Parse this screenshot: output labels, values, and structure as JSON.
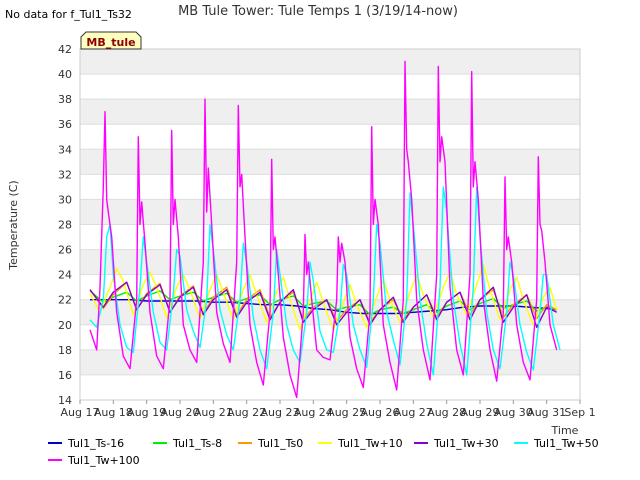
{
  "no_data_note": "No data for f_Tul1_Ts32",
  "badge": "MB_tule",
  "colors": {
    "band": "#efefef",
    "grid": "#dddddd",
    "axis": "#999999",
    "badge_fill": "#ffffc0",
    "badge_border": "#333333"
  },
  "chart_data": {
    "type": "line",
    "title": "MB Tule Tower: Tule Temps 1 (3/19/14-now)",
    "ylabel": "Temperature (C)",
    "xlabel": "Time",
    "ylim": [
      14,
      42
    ],
    "yticks": [
      14,
      16,
      18,
      20,
      22,
      24,
      26,
      28,
      30,
      32,
      34,
      36,
      38,
      40,
      42
    ],
    "xlim": [
      17,
      32
    ],
    "xticks": [
      {
        "value": 17,
        "label": "Aug 17"
      },
      {
        "value": 18,
        "label": "Aug 18"
      },
      {
        "value": 19,
        "label": "Aug 19"
      },
      {
        "value": 20,
        "label": "Aug 20"
      },
      {
        "value": 21,
        "label": "Aug 21"
      },
      {
        "value": 22,
        "label": "Aug 22"
      },
      {
        "value": 23,
        "label": "Aug 23"
      },
      {
        "value": 24,
        "label": "Aug 24"
      },
      {
        "value": 25,
        "label": "Aug 25"
      },
      {
        "value": 26,
        "label": "Aug 26"
      },
      {
        "value": 27,
        "label": "Aug 27"
      },
      {
        "value": 28,
        "label": "Aug 28"
      },
      {
        "value": 29,
        "label": "Aug 29"
      },
      {
        "value": 30,
        "label": "Aug 30"
      },
      {
        "value": 31,
        "label": "Aug 31"
      },
      {
        "value": 32,
        "label": "Sep 1"
      }
    ],
    "grid": true,
    "legend_position": "bottom",
    "series": [
      {
        "name": "Tul1_Ts-16",
        "color": "#0000cc",
        "x": [
          17.3,
          18,
          18.5,
          19,
          19.5,
          20,
          20.5,
          21,
          21.5,
          22,
          22.5,
          23,
          23.5,
          24,
          24.5,
          25,
          25.5,
          26,
          26.5,
          27,
          27.5,
          28,
          28.5,
          29,
          29.5,
          30,
          30.5,
          31,
          31.3
        ],
        "y": [
          22.0,
          22.0,
          22.0,
          21.9,
          21.9,
          21.9,
          21.9,
          21.8,
          21.8,
          21.7,
          21.6,
          21.6,
          21.5,
          21.3,
          21.2,
          21.0,
          20.9,
          20.9,
          20.9,
          21.0,
          21.1,
          21.2,
          21.4,
          21.5,
          21.5,
          21.5,
          21.4,
          21.3,
          21.2
        ]
      },
      {
        "name": "Tul1_Ts-8",
        "color": "#00ee00",
        "x": [
          17.3,
          17.7,
          18,
          18.4,
          18.7,
          19,
          19.4,
          19.7,
          20,
          20.4,
          20.7,
          21,
          21.4,
          21.7,
          22,
          22.4,
          22.7,
          23,
          23.4,
          23.7,
          24,
          24.4,
          24.7,
          25,
          25.4,
          25.7,
          26,
          26.4,
          26.7,
          27,
          27.4,
          27.7,
          28,
          28.4,
          28.7,
          29,
          29.4,
          29.7,
          30,
          30.4,
          30.7,
          31,
          31.3
        ],
        "y": [
          22.7,
          21.8,
          22.2,
          22.6,
          21.9,
          22.3,
          22.7,
          22.0,
          22.3,
          22.6,
          21.9,
          22.2,
          22.5,
          21.8,
          22.1,
          22.4,
          21.6,
          22.0,
          22.3,
          21.5,
          21.7,
          21.9,
          21.2,
          21.4,
          21.6,
          20.8,
          21.2,
          21.4,
          20.9,
          21.2,
          21.6,
          21.0,
          21.5,
          21.9,
          21.2,
          21.7,
          22.1,
          21.3,
          21.6,
          21.9,
          21.1,
          21.4,
          21.2
        ]
      },
      {
        "name": "Tul1_Ts0",
        "color": "#ff9900",
        "x": [
          17.3,
          17.7,
          18,
          18.4,
          18.7,
          19,
          19.4,
          19.7,
          20,
          20.4,
          20.7,
          21,
          21.4,
          21.7,
          22,
          22.4,
          22.7,
          23,
          23.4,
          23.7,
          24,
          24.4,
          24.7,
          25,
          25.4,
          25.7,
          26,
          26.4,
          26.7,
          27,
          27.4,
          27.7,
          28,
          28.4,
          28.7,
          29,
          29.4,
          29.7,
          30,
          30.4,
          30.7,
          31,
          31.3
        ],
        "y": [
          22.8,
          21.3,
          22.4,
          23.4,
          21.2,
          22.5,
          23.3,
          21.0,
          22.3,
          23.1,
          20.9,
          22.2,
          23.0,
          20.8,
          22.0,
          22.8,
          20.6,
          21.8,
          22.6,
          20.4,
          21.4,
          22.0,
          20.3,
          21.2,
          22.0,
          20.2,
          21.2,
          22.0,
          20.4,
          21.4,
          22.4,
          20.6,
          21.8,
          22.6,
          20.8,
          22.0,
          22.8,
          20.6,
          21.6,
          22.4,
          20.5,
          21.6,
          21.2
        ]
      },
      {
        "name": "Tul1_Tw+10",
        "color": "#ffff00",
        "x": [
          17.3,
          17.6,
          17.9,
          18.1,
          18.3,
          18.6,
          18.9,
          19.1,
          19.3,
          19.6,
          19.9,
          20.1,
          20.3,
          20.6,
          20.9,
          21.1,
          21.3,
          21.6,
          21.9,
          22.1,
          22.3,
          22.6,
          22.9,
          23.1,
          23.3,
          23.6,
          23.9,
          24.1,
          24.3,
          24.6,
          24.9,
          25.1,
          25.3,
          25.6,
          25.9,
          26.1,
          26.3,
          26.6,
          26.9,
          27.1,
          27.3,
          27.6,
          27.9,
          28.1,
          28.3,
          28.6,
          28.9,
          29.1,
          29.3,
          29.6,
          29.9,
          30.1,
          30.3,
          30.6,
          30.9,
          31.1,
          31.3
        ],
        "y": [
          22.5,
          21.0,
          23.0,
          24.5,
          23.5,
          20.8,
          23.2,
          24.2,
          23.0,
          20.6,
          23.0,
          24.0,
          22.8,
          20.5,
          22.8,
          24.0,
          22.6,
          20.4,
          22.8,
          24.0,
          22.4,
          20.2,
          22.6,
          23.8,
          22.0,
          19.6,
          22.0,
          23.4,
          21.8,
          19.6,
          21.8,
          23.2,
          21.6,
          19.8,
          22.2,
          23.6,
          22.0,
          20.2,
          22.6,
          24.0,
          22.4,
          20.6,
          23.0,
          24.2,
          22.4,
          20.8,
          23.2,
          24.8,
          22.8,
          20.4,
          22.8,
          23.8,
          22.0,
          20.0,
          22.2,
          23.0,
          21.2
        ]
      },
      {
        "name": "Tul1_Tw+30",
        "color": "#8800cc",
        "x": [
          17.3,
          17.7,
          18,
          18.4,
          18.7,
          19,
          19.4,
          19.7,
          20,
          20.4,
          20.7,
          21,
          21.4,
          21.7,
          22,
          22.4,
          22.7,
          23,
          23.4,
          23.7,
          24,
          24.4,
          24.7,
          25,
          25.4,
          25.7,
          26,
          26.4,
          26.7,
          27,
          27.4,
          27.7,
          28,
          28.4,
          28.7,
          29,
          29.4,
          29.7,
          30,
          30.4,
          30.7,
          31,
          31.3
        ],
        "y": [
          22.8,
          21.4,
          22.6,
          23.4,
          21.2,
          22.4,
          23.2,
          21.0,
          22.2,
          23.0,
          20.8,
          22.0,
          22.8,
          20.6,
          21.8,
          22.6,
          20.4,
          21.8,
          22.8,
          20.2,
          21.2,
          22.0,
          20.0,
          21.0,
          22.0,
          20.0,
          21.2,
          22.2,
          20.2,
          21.4,
          22.4,
          20.4,
          21.8,
          22.6,
          20.4,
          22.0,
          23.0,
          20.2,
          21.4,
          22.4,
          19.8,
          21.4,
          21.0
        ]
      },
      {
        "name": "Tul1_Tw+50",
        "color": "#00ffff",
        "x": [
          17.3,
          17.5,
          17.7,
          17.8,
          17.9,
          18.0,
          18.2,
          18.4,
          18.6,
          18.8,
          18.9,
          19.0,
          19.2,
          19.4,
          19.6,
          19.8,
          19.9,
          20.0,
          20.2,
          20.4,
          20.6,
          20.8,
          20.9,
          21.0,
          21.2,
          21.4,
          21.6,
          21.8,
          21.9,
          22.0,
          22.2,
          22.4,
          22.6,
          22.8,
          22.9,
          23.0,
          23.2,
          23.4,
          23.6,
          23.8,
          23.9,
          24.0,
          24.2,
          24.4,
          24.6,
          24.8,
          24.9,
          25.0,
          25.2,
          25.4,
          25.6,
          25.8,
          25.9,
          26.0,
          26.2,
          26.4,
          26.6,
          26.8,
          26.9,
          27.0,
          27.2,
          27.4,
          27.6,
          27.8,
          27.9,
          28.0,
          28.2,
          28.4,
          28.6,
          28.8,
          28.9,
          29.0,
          29.2,
          29.4,
          29.6,
          29.8,
          29.9,
          30.0,
          30.2,
          30.4,
          30.6,
          30.8,
          30.9,
          31.0,
          31.2,
          31.4
        ],
        "y": [
          20.4,
          19.8,
          22.0,
          27.0,
          28.0,
          24.0,
          20.0,
          18.2,
          17.8,
          23.0,
          27.0,
          25.0,
          21.0,
          18.6,
          18.0,
          22.5,
          26.0,
          25.5,
          21.2,
          19.5,
          18.2,
          22.0,
          28.0,
          26.0,
          21.2,
          19.2,
          18.0,
          22.0,
          26.5,
          25.0,
          20.6,
          18.0,
          16.5,
          21.0,
          26.0,
          24.0,
          20.0,
          18.0,
          17.0,
          21.0,
          25.0,
          23.5,
          19.5,
          18.0,
          17.8,
          21.0,
          24.8,
          24.0,
          20.0,
          18.0,
          16.6,
          22.0,
          28.0,
          26.5,
          21.0,
          18.8,
          16.8,
          22.0,
          30.5,
          28.0,
          22.0,
          18.5,
          16.0,
          23.0,
          31.0,
          29.0,
          22.0,
          18.5,
          16.0,
          23.0,
          31.0,
          27.0,
          21.0,
          18.0,
          16.5,
          21.0,
          25.0,
          24.0,
          20.0,
          17.8,
          16.4,
          21.0,
          24.0,
          24.0,
          20.0,
          18.0
        ]
      },
      {
        "name": "Tul1_Tw+100",
        "color": "#ff00ff",
        "x": [
          17.3,
          17.5,
          17.6,
          17.7,
          17.75,
          17.8,
          17.85,
          17.95,
          18.1,
          18.3,
          18.5,
          18.7,
          18.75,
          18.8,
          18.85,
          18.95,
          19.1,
          19.3,
          19.5,
          19.7,
          19.75,
          19.8,
          19.85,
          19.95,
          20.1,
          20.3,
          20.5,
          20.7,
          20.75,
          20.8,
          20.85,
          20.95,
          21.1,
          21.3,
          21.5,
          21.7,
          21.75,
          21.8,
          21.85,
          21.95,
          22.1,
          22.3,
          22.5,
          22.7,
          22.75,
          22.8,
          22.85,
          22.95,
          23.1,
          23.3,
          23.5,
          23.7,
          23.75,
          23.8,
          23.85,
          23.95,
          24.1,
          24.3,
          24.5,
          24.7,
          24.75,
          24.8,
          24.85,
          24.95,
          25.1,
          25.3,
          25.5,
          25.7,
          25.75,
          25.8,
          25.85,
          25.95,
          26.1,
          26.3,
          26.5,
          26.7,
          26.75,
          26.8,
          26.85,
          26.95,
          27.1,
          27.3,
          27.5,
          27.7,
          27.75,
          27.8,
          27.85,
          27.95,
          28.1,
          28.3,
          28.5,
          28.7,
          28.75,
          28.8,
          28.85,
          28.95,
          29.1,
          29.3,
          29.5,
          29.7,
          29.75,
          29.8,
          29.85,
          29.95,
          30.1,
          30.3,
          30.5,
          30.7,
          30.75,
          30.8,
          30.85,
          30.95,
          31.1,
          31.3
        ],
        "y": [
          19.6,
          18.0,
          23.0,
          31.0,
          37.0,
          30.0,
          29.0,
          27.0,
          21.0,
          17.5,
          16.5,
          22.0,
          35.0,
          28.0,
          29.8,
          26.5,
          21.0,
          17.5,
          16.5,
          22.0,
          35.5,
          28.0,
          30.0,
          27.0,
          20.0,
          18.0,
          17.0,
          25.0,
          38.0,
          29.0,
          32.5,
          28.0,
          21.0,
          18.5,
          17.0,
          25.0,
          37.5,
          31.0,
          32.0,
          27.0,
          20.0,
          17.0,
          15.2,
          21.0,
          33.2,
          26.0,
          27.0,
          24.0,
          19.0,
          16.0,
          14.2,
          21.0,
          27.2,
          24.0,
          25.0,
          22.0,
          18.0,
          17.4,
          17.2,
          22.0,
          27.0,
          25.0,
          26.5,
          25.0,
          19.0,
          16.5,
          15.0,
          21.0,
          35.8,
          28.0,
          30.0,
          28.0,
          20.0,
          17.0,
          14.8,
          22.0,
          41.0,
          34.0,
          33.0,
          30.0,
          22.0,
          18.0,
          15.6,
          24.0,
          40.6,
          33.0,
          35.0,
          33.0,
          23.0,
          18.0,
          16.0,
          24.0,
          40.2,
          31.0,
          33.0,
          30.0,
          22.0,
          18.0,
          15.5,
          21.0,
          31.8,
          26.0,
          27.0,
          25.0,
          20.0,
          17.0,
          15.6,
          22.0,
          33.4,
          28.0,
          27.5,
          25.0,
          20.0,
          18.0
        ]
      }
    ]
  }
}
